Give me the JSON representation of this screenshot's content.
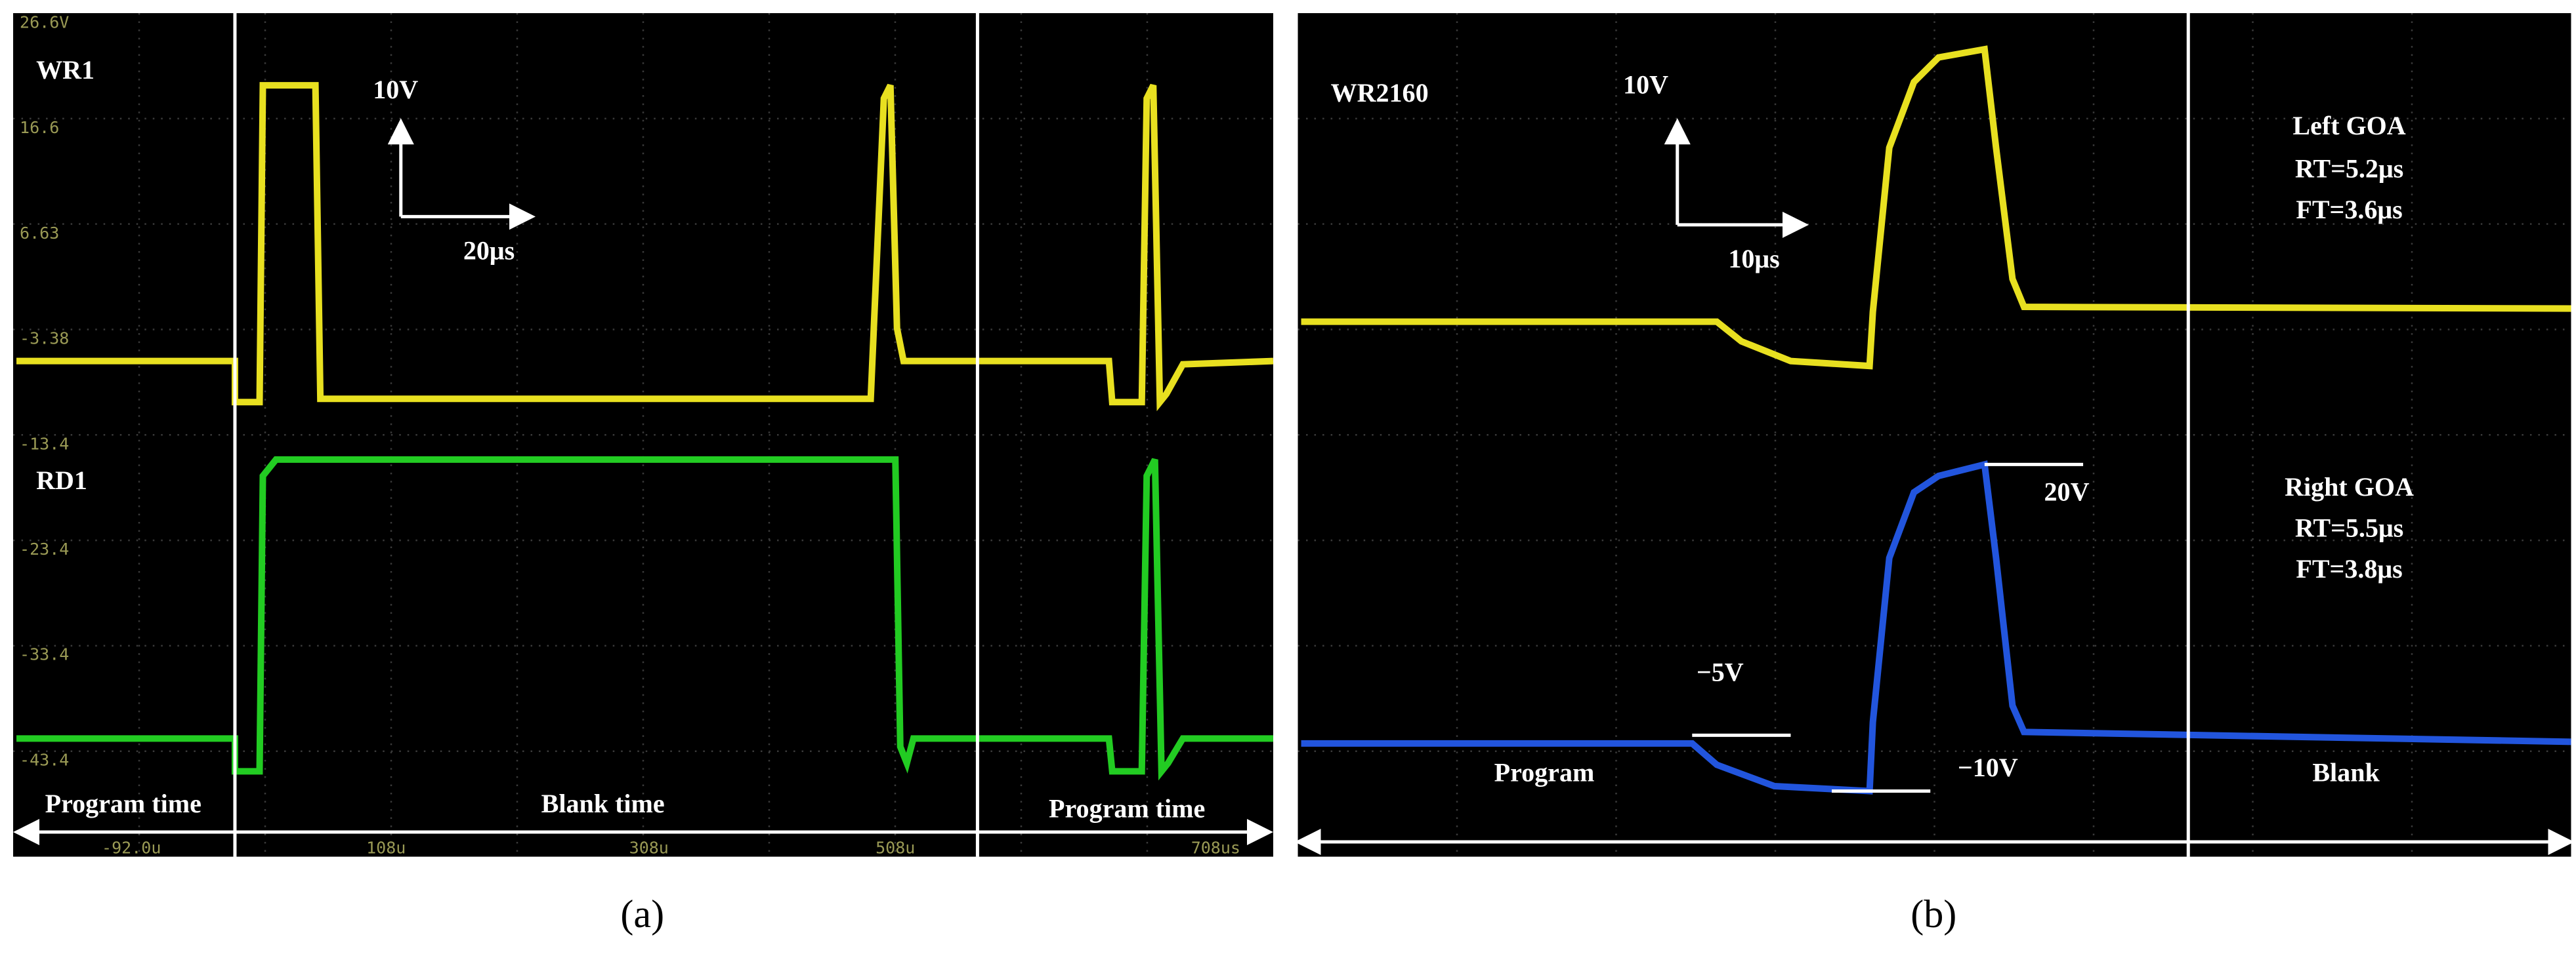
{
  "panel_a": {
    "scale_labels": [
      "26.6V",
      "16.6",
      "6.63",
      "-3.38",
      "-13.4",
      "-23.4",
      "-33.4",
      "-43.4"
    ],
    "time_labels": [
      "-92.0u",
      "108u",
      "308u",
      "508u",
      "708us"
    ],
    "channels": [
      "WR1",
      "RD1"
    ],
    "voltage_scale": "10V",
    "time_scale": "20μs",
    "regions": [
      "Program time",
      "Blank time",
      "Program time"
    ]
  },
  "panel_b": {
    "channel": "WR2160",
    "voltage_scale": "10V",
    "time_scale": "10μs",
    "left": [
      "Left GOA",
      "RT=5.2μs",
      "FT=3.6μs"
    ],
    "right": [
      "Right GOA",
      "RT=5.5μs",
      "FT=3.8μs"
    ],
    "levels": [
      "20V",
      "−5V",
      "−10V"
    ],
    "regions": [
      "Program",
      "Blank"
    ]
  },
  "captions": [
    "(a)",
    "(b)"
  ]
}
